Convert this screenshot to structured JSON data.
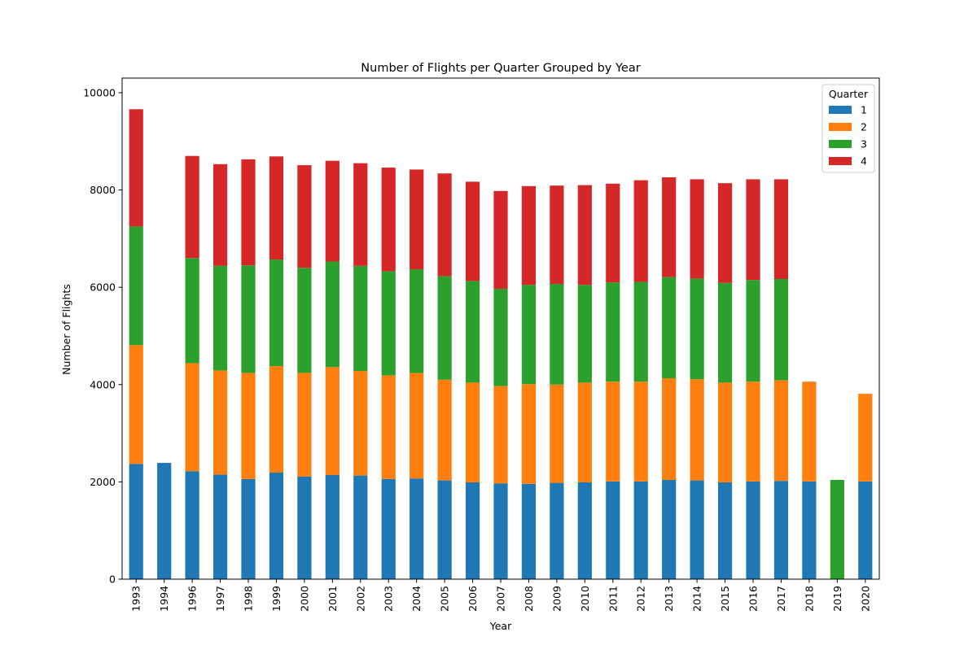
{
  "chart_data": {
    "type": "bar",
    "stacked": true,
    "title": "Number of Flights per Quarter Grouped by Year",
    "xlabel": "Year",
    "ylabel": "Number of Flights",
    "ylim": [
      0,
      10300
    ],
    "yticks": [
      0,
      2000,
      4000,
      6000,
      8000,
      10000
    ],
    "grid": false,
    "legend": {
      "title": "Quarter",
      "position": "top-right"
    },
    "categories": [
      "1993",
      "1994",
      "1996",
      "1997",
      "1998",
      "1999",
      "2000",
      "2001",
      "2002",
      "2003",
      "2004",
      "2005",
      "2006",
      "2007",
      "2008",
      "2009",
      "2010",
      "2011",
      "2012",
      "2013",
      "2014",
      "2015",
      "2016",
      "2017",
      "2018",
      "2019",
      "2020"
    ],
    "series": [
      {
        "name": "1",
        "color": "#1f77b4",
        "values": [
          2370,
          2390,
          2220,
          2150,
          2060,
          2190,
          2110,
          2140,
          2130,
          2060,
          2070,
          2030,
          1990,
          1970,
          1960,
          1980,
          1990,
          2010,
          2010,
          2040,
          2030,
          1990,
          2010,
          2020,
          2010,
          0,
          2010
        ]
      },
      {
        "name": "2",
        "color": "#ff7f0e",
        "values": [
          2440,
          0,
          2220,
          2140,
          2180,
          2190,
          2130,
          2220,
          2150,
          2130,
          2170,
          2070,
          2050,
          2000,
          2050,
          2020,
          2050,
          2050,
          2050,
          2090,
          2080,
          2050,
          2050,
          2070,
          2050,
          0,
          1800
        ]
      },
      {
        "name": "3",
        "color": "#2ca02c",
        "values": [
          2440,
          0,
          2160,
          2150,
          2210,
          2190,
          2160,
          2170,
          2160,
          2140,
          2130,
          2130,
          2090,
          2000,
          2040,
          2070,
          2010,
          2040,
          2050,
          2080,
          2070,
          2050,
          2090,
          2080,
          0,
          2040,
          0
        ]
      },
      {
        "name": "4",
        "color": "#d62728",
        "values": [
          2410,
          0,
          2100,
          2090,
          2180,
          2120,
          2110,
          2070,
          2110,
          2130,
          2050,
          2110,
          2040,
          2010,
          2030,
          2020,
          2050,
          2030,
          2090,
          2050,
          2040,
          2050,
          2070,
          2050,
          0,
          0,
          0
        ]
      }
    ]
  }
}
